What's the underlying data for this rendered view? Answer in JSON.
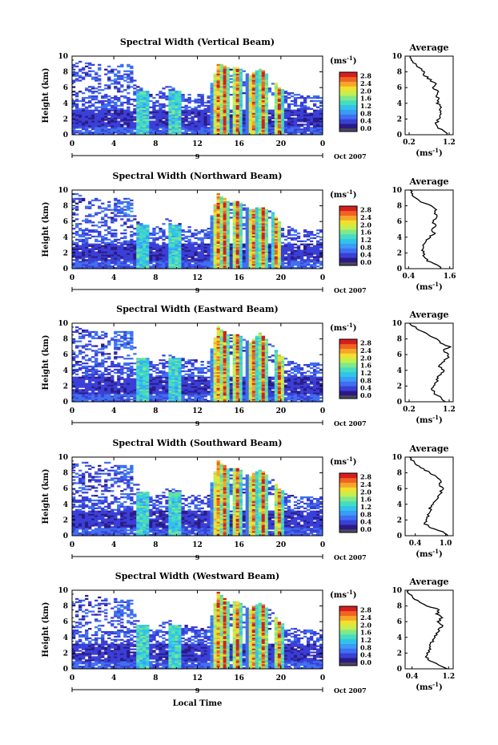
{
  "colors": {
    "colormap": [
      "#2b1a86",
      "#3a3fd6",
      "#3f6ff0",
      "#3a9cf5",
      "#31c3ea",
      "#46dcc0",
      "#7fe88a",
      "#c4ef4e",
      "#f0e030",
      "#f6a62a",
      "#f26322",
      "#d61e1e"
    ],
    "mask": "#4a4a5c",
    "axis": "#000000",
    "background": "#ffffff"
  },
  "common": {
    "x_ticks": [
      "0",
      "4",
      "8",
      "12",
      "16",
      "20",
      "0"
    ],
    "date_tick": "9",
    "date_label": "Oct 2007",
    "y_ticks": [
      "0",
      "2",
      "4",
      "6",
      "8",
      "10"
    ],
    "ylabel": "Height (km)",
    "colorbar_unit": "(ms",
    "colorbar_unit_exp": "-1",
    "colorbar_unit_close": ")",
    "colorbar_ticks": [
      "0.0",
      "0.4",
      "0.8",
      "1.2",
      "1.6",
      "2.0",
      "2.4",
      "2.8"
    ],
    "profile_title": "Average",
    "profile_unit": "(ms",
    "profile_unit_exp": "-1",
    "profile_unit_close": ")",
    "profile_y_ticks": [
      "0",
      "2",
      "4",
      "6",
      "8",
      "10"
    ]
  },
  "xlabel": "Local Time",
  "chart_data": [
    {
      "type": "heatmap",
      "title": "Spectral Width (Vertical Beam)",
      "x": [
        0,
        1,
        2,
        3,
        4,
        5,
        6,
        7,
        8,
        9,
        10,
        11,
        12,
        13,
        14,
        15,
        16,
        17,
        18,
        19,
        20,
        21,
        22,
        23,
        24
      ],
      "y_range_km": [
        0,
        10
      ],
      "x_range_h": [
        0,
        24
      ],
      "cloud_tops_km": [
        9.6,
        9.5,
        9,
        9.3,
        8.3,
        6,
        7,
        5.5,
        5,
        6.4,
        5.8,
        5.5,
        5.3,
        5,
        9.1,
        8.6,
        8.6,
        7.6,
        8.4,
        7.5,
        5.8,
        5.4,
        5,
        4.8,
        4.6
      ],
      "convective_cores_h": [
        13.9,
        14.6,
        15.8,
        17.3,
        18.3,
        19.8
      ],
      "colorbar_range": [
        0,
        3.0
      ],
      "profile": {
        "xticks": [
          "0.2",
          "1.2"
        ],
        "xlim": [
          0.1,
          1.3
        ],
        "height": [
          0,
          0.5,
          1,
          1.5,
          2,
          2.5,
          3,
          3.5,
          4,
          4.5,
          5,
          5.5,
          6,
          6.5,
          7,
          7.5,
          8,
          8.5,
          9,
          9.5,
          10
        ],
        "value": [
          1.15,
          1.05,
          0.9,
          0.88,
          0.95,
          1.0,
          0.98,
          1.0,
          0.92,
          0.95,
          0.88,
          0.92,
          0.8,
          0.85,
          0.72,
          0.6,
          0.55,
          0.45,
          0.35,
          0.28,
          0.2
        ]
      }
    },
    {
      "type": "heatmap",
      "title": "Spectral Width (Northward Beam)",
      "x": [
        0,
        1,
        2,
        3,
        4,
        5,
        6,
        7,
        8,
        9,
        10,
        11,
        12,
        13,
        14,
        15,
        16,
        17,
        18,
        19,
        20,
        21,
        22,
        23,
        24
      ],
      "y_range_km": [
        0,
        10
      ],
      "x_range_h": [
        0,
        24
      ],
      "cloud_tops_km": [
        9.6,
        9.5,
        9,
        9.3,
        8.3,
        6,
        7,
        5.5,
        5.2,
        6.4,
        5.8,
        5.5,
        5.3,
        5,
        9.6,
        8.6,
        8.6,
        7.6,
        7.8,
        7.5,
        5.8,
        5.4,
        5,
        4.8,
        4.6
      ],
      "convective_cores_h": [
        13.9,
        14.6,
        15.8,
        17.3,
        18.3,
        19.6
      ],
      "colorbar_range": [
        0,
        3.0
      ],
      "profile": {
        "xticks": [
          "0.4",
          "1.6"
        ],
        "xlim": [
          0.3,
          1.7
        ],
        "height": [
          0,
          0.5,
          1,
          1.5,
          2,
          2.5,
          3,
          3.5,
          4,
          4.5,
          5,
          5.5,
          6,
          6.5,
          7,
          7.5,
          8,
          8.5,
          9,
          9.5,
          10
        ],
        "value": [
          1.35,
          1.2,
          0.95,
          0.85,
          0.82,
          0.8,
          0.85,
          0.9,
          1.0,
          1.15,
          1.05,
          1.2,
          1.1,
          1.25,
          1.15,
          1.2,
          1.05,
          0.75,
          0.6,
          0.5,
          0.45
        ]
      }
    },
    {
      "type": "heatmap",
      "title": "Spectral Width (Eastward Beam)",
      "x": [
        0,
        1,
        2,
        3,
        4,
        5,
        6,
        7,
        8,
        9,
        10,
        11,
        12,
        13,
        14,
        15,
        16,
        17,
        18,
        19,
        20,
        21,
        22,
        23,
        24
      ],
      "y_range_km": [
        0,
        10
      ],
      "x_range_h": [
        0,
        24
      ],
      "cloud_tops_km": [
        9.6,
        9.5,
        9,
        9.3,
        8.8,
        6,
        7,
        5.5,
        5,
        6.4,
        5.8,
        5.5,
        5.3,
        5,
        9.6,
        8.6,
        8.6,
        7.6,
        8.8,
        7.5,
        5.8,
        5.4,
        5,
        4.8,
        4.6
      ],
      "convective_cores_h": [
        13.9,
        14.6,
        15.8,
        17.3,
        18.3,
        19.9
      ],
      "colorbar_range": [
        0,
        3.0
      ],
      "profile": {
        "xticks": [
          "0.2",
          "1.2"
        ],
        "xlim": [
          0.1,
          1.3
        ],
        "height": [
          0,
          0.5,
          1,
          1.5,
          2,
          2.5,
          3,
          3.5,
          4,
          4.5,
          5,
          5.5,
          6,
          6.5,
          7,
          7.5,
          8,
          8.5,
          9,
          9.5,
          10
        ],
        "value": [
          1.1,
          1.0,
          0.85,
          0.78,
          0.8,
          0.88,
          0.9,
          1.0,
          1.05,
          0.95,
          1.0,
          1.15,
          1.2,
          1.05,
          1.2,
          1.0,
          0.9,
          0.7,
          0.5,
          0.35,
          0.2
        ]
      }
    },
    {
      "type": "heatmap",
      "title": "Spectral Width (Southward Beam)",
      "x": [
        0,
        1,
        2,
        3,
        4,
        5,
        6,
        7,
        8,
        9,
        10,
        11,
        12,
        13,
        14,
        15,
        16,
        17,
        18,
        19,
        20,
        21,
        22,
        23,
        24
      ],
      "y_range_km": [
        0,
        10
      ],
      "x_range_h": [
        0,
        24
      ],
      "cloud_tops_km": [
        9.6,
        9.5,
        9,
        9.3,
        9.4,
        9,
        7,
        5.5,
        5,
        6.4,
        5.8,
        5.5,
        5.3,
        5,
        9.6,
        8.6,
        8.6,
        7.6,
        8.4,
        7.5,
        5.8,
        5.4,
        5,
        4.8,
        4.6
      ],
      "convective_cores_h": [
        13.9,
        14.6,
        15.8,
        17.3,
        18.3,
        19.8
      ],
      "colorbar_range": [
        0,
        3.0
      ],
      "profile": {
        "xticks": [
          "0.4",
          "1.0"
        ],
        "xlim": [
          0.2,
          1.15
        ],
        "height": [
          0,
          0.5,
          1,
          1.5,
          2,
          2.5,
          3,
          3.5,
          4,
          4.5,
          5,
          5.5,
          6,
          6.5,
          7,
          7.5,
          8,
          8.5,
          9,
          9.5,
          10
        ],
        "value": [
          1.05,
          0.95,
          0.7,
          0.6,
          0.62,
          0.65,
          0.68,
          0.7,
          0.75,
          0.8,
          0.85,
          0.9,
          0.95,
          0.88,
          0.92,
          0.8,
          0.7,
          0.55,
          0.45,
          0.35,
          0.3
        ]
      }
    },
    {
      "type": "heatmap",
      "title": "Spectral Width (Westward Beam)",
      "x": [
        0,
        1,
        2,
        3,
        4,
        5,
        6,
        7,
        8,
        9,
        10,
        11,
        12,
        13,
        14,
        15,
        16,
        17,
        18,
        19,
        20,
        21,
        22,
        23,
        24
      ],
      "y_range_km": [
        0,
        10
      ],
      "x_range_h": [
        0,
        24
      ],
      "cloud_tops_km": [
        9.6,
        9.5,
        9,
        9.3,
        8.3,
        6,
        7,
        5.5,
        5,
        6.4,
        5.8,
        5.5,
        5.3,
        5,
        9.8,
        8.6,
        8.6,
        7.6,
        8.4,
        7.5,
        5.8,
        5.4,
        5,
        4.8,
        4.6
      ],
      "convective_cores_h": [
        13.9,
        14.6,
        15.8,
        17.3,
        18.3,
        19.8
      ],
      "colorbar_range": [
        0,
        3.0
      ],
      "profile": {
        "xticks": [
          "0.4",
          "1.2"
        ],
        "xlim": [
          0.25,
          1.3
        ],
        "height": [
          0,
          0.5,
          1,
          1.5,
          2,
          2.5,
          3,
          3.5,
          4,
          4.5,
          5,
          5.5,
          6,
          6.5,
          7,
          7.5,
          8,
          8.5,
          9,
          9.5,
          10
        ],
        "value": [
          1.15,
          1.0,
          0.8,
          0.72,
          0.75,
          0.78,
          0.8,
          0.85,
          0.9,
          0.95,
          1.0,
          1.05,
          0.98,
          1.05,
          0.95,
          1.0,
          0.75,
          0.55,
          0.45,
          0.35,
          0.3
        ]
      }
    }
  ]
}
